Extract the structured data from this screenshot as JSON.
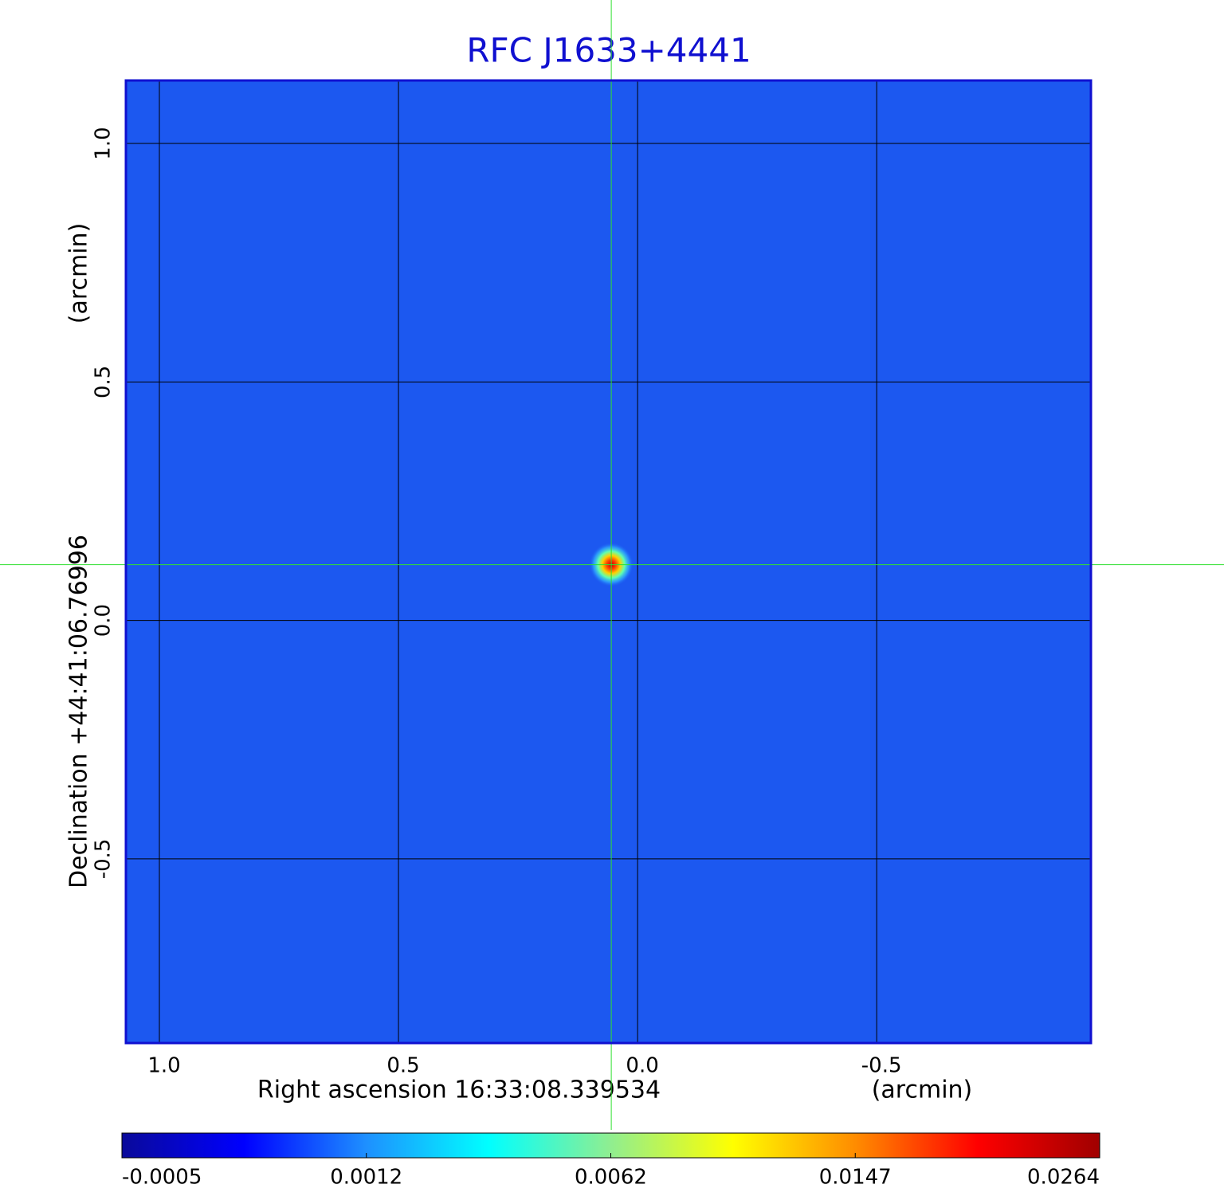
{
  "chart_data": {
    "type": "image",
    "title": "RFC J1633+4441",
    "xlabel": "Right ascension  16:33:08.339534",
    "xunit": "(arcmin)",
    "ylabel": "Declination  +44:41:06.76996",
    "yunit": "(arcmin)",
    "xlim": [
      1.07,
      -0.948
    ],
    "ylim": [
      -0.886,
      1.132
    ],
    "xticks": [
      {
        "value": 1,
        "label": "1.0"
      },
      0.5,
      {
        "value": 0,
        "label": "0.0"
      },
      -0.5
    ],
    "yticks": [
      {
        "value": 1,
        "label": "1.0"
      },
      0.5,
      {
        "value": 0,
        "label": "0.0"
      },
      -0.5
    ],
    "grid": true,
    "source": {
      "x": 0.055,
      "y": 0.117
    },
    "colorbar": {
      "ticks": [
        -0.0005,
        0.0012,
        0.0062,
        0.0147,
        0.0264
      ],
      "colors": [
        "#0a0a9a",
        "#0000ff",
        "#1e90ff",
        "#00ffff",
        "#90ee90",
        "#ffff00",
        "#ff8c00",
        "#ff0000",
        "#a00000"
      ]
    }
  }
}
